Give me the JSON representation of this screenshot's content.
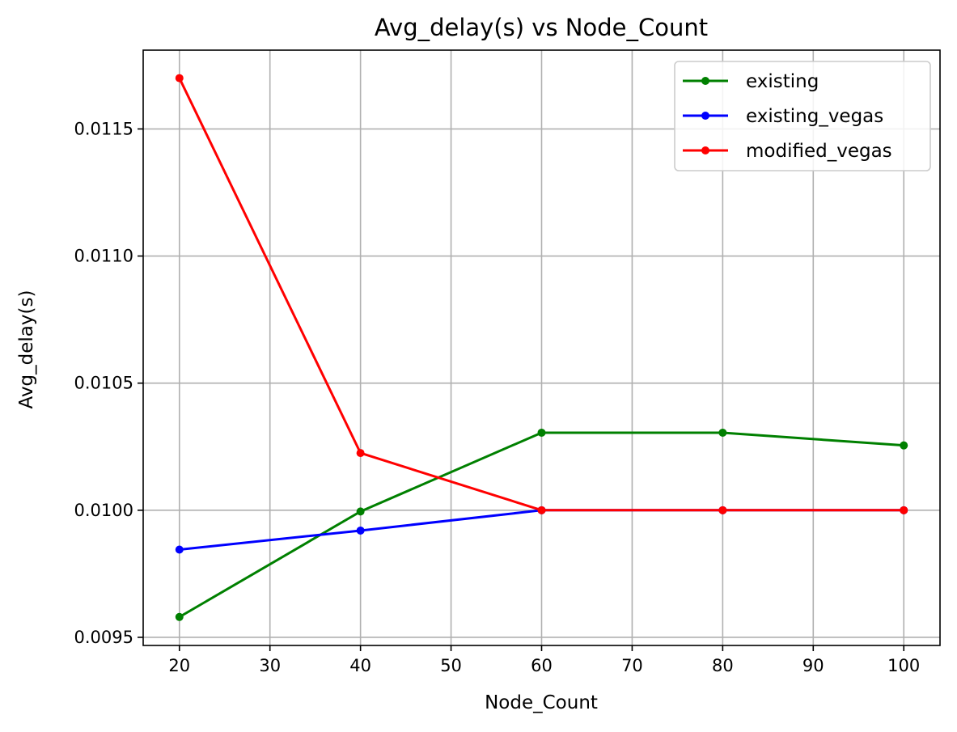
{
  "chart_data": {
    "type": "line",
    "title": "Avg_delay(s) vs Node_Count",
    "xlabel": "Node_Count",
    "ylabel": "Avg_delay(s)",
    "x": [
      20,
      40,
      60,
      80,
      100
    ],
    "xlim": [
      16,
      104
    ],
    "ylim": [
      0.009468,
      0.01181
    ],
    "xticks": [
      20,
      30,
      40,
      50,
      60,
      70,
      80,
      90,
      100
    ],
    "yticks": [
      0.0095,
      0.01,
      0.0105,
      0.011,
      0.0115
    ],
    "ytick_labels": [
      "0.0095",
      "0.0100",
      "0.0105",
      "0.0110",
      "0.0115"
    ],
    "grid": true,
    "legend_position": "top-right",
    "series": [
      {
        "name": "existing",
        "color": "#008000",
        "values": [
          0.00958,
          0.009995,
          0.010305,
          0.010305,
          0.010255
        ]
      },
      {
        "name": "existing_vegas",
        "color": "#0000ff",
        "values": [
          0.009845,
          0.00992,
          0.01,
          0.01,
          0.01
        ]
      },
      {
        "name": "modified_vegas",
        "color": "#ff0000",
        "values": [
          0.0117,
          0.010225,
          0.01,
          0.01,
          0.01
        ]
      }
    ]
  }
}
